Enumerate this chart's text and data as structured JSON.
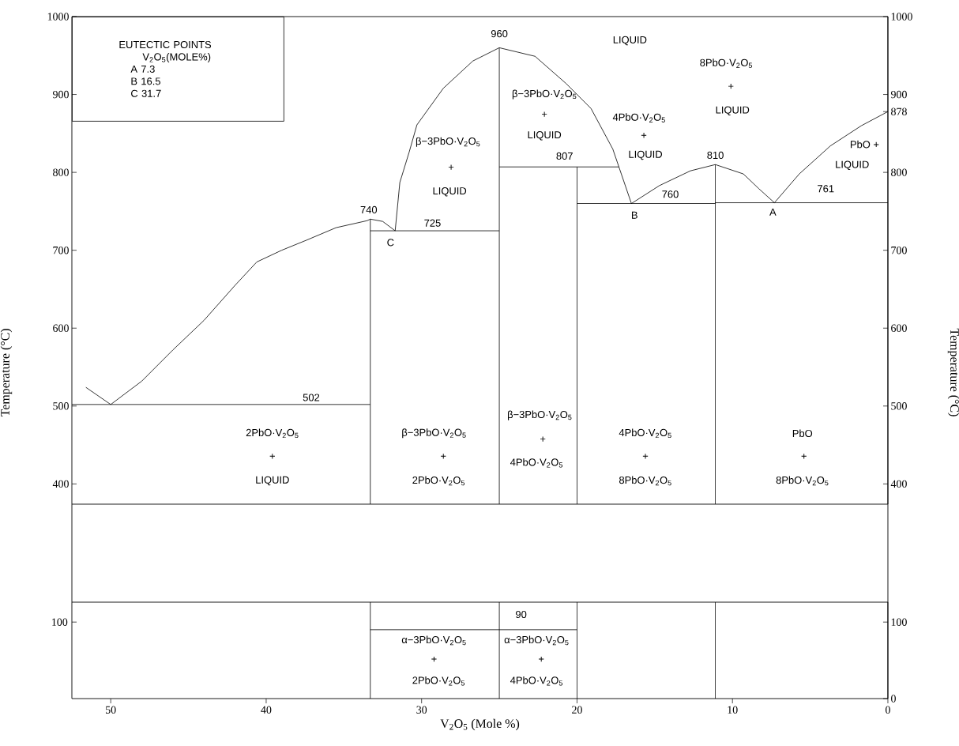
{
  "chart_data": [
    {
      "type": "line",
      "ylabel": "Temperature (°C)",
      "y2label": "Temperature (°C)",
      "xlim": [
        52.5,
        0
      ],
      "ylim": [
        374,
        1000
      ],
      "yticks": [
        400,
        500,
        600,
        700,
        800,
        900,
        1000
      ],
      "y2lim": [
        374,
        1000
      ],
      "y2ticks": [
        400,
        500,
        600,
        700,
        800,
        878,
        900,
        1000
      ],
      "tick_labels": "y",
      "series": [
        {
          "color": "#000000",
          "x": [
            51.6,
            50,
            48,
            46,
            44,
            42,
            40.6,
            39,
            37.4,
            35.5,
            33.5,
            33.3,
            32.5,
            31.7
          ],
          "values": [
            524,
            502,
            532,
            572,
            610,
            655,
            685,
            700,
            713,
            729,
            738,
            740,
            737,
            725
          ]
        },
        {
          "color": "#000000",
          "x": [
            31.7,
            31.4,
            30.8,
            30.3,
            28.6,
            26.7,
            25
          ],
          "values": [
            725,
            787,
            826,
            861,
            908,
            943,
            960
          ]
        },
        {
          "color": "#000000",
          "x": [
            25,
            22.7,
            20.7,
            19.1,
            17.7,
            16.5
          ],
          "values": [
            960,
            949,
            914,
            882,
            830,
            760
          ]
        },
        {
          "color": "#000000",
          "x": [
            16.5,
            14.7,
            12.7,
            11.1,
            9.3,
            8.3,
            7.3
          ],
          "values": [
            760,
            783,
            802,
            810,
            798,
            779,
            761
          ]
        },
        {
          "color": "#000000",
          "x": [
            7.3,
            5.7,
            3.7,
            1.7,
            0
          ],
          "values": [
            761,
            798,
            834,
            860,
            878
          ]
        },
        {
          "color": "#000000",
          "x": [
            52.5,
            33.3
          ],
          "values": [
            502,
            502
          ]
        },
        {
          "color": "#000000",
          "x": [
            33.3,
            33.3
          ],
          "values": [
            374,
            740
          ]
        },
        {
          "color": "#000000",
          "x": [
            33.3,
            25
          ],
          "values": [
            725,
            725
          ]
        },
        {
          "color": "#000000",
          "x": [
            25,
            25
          ],
          "values": [
            374,
            960
          ]
        },
        {
          "color": "#000000",
          "x": [
            25,
            17.3
          ],
          "values": [
            807,
            807
          ]
        },
        {
          "color": "#000000",
          "x": [
            20,
            20
          ],
          "values": [
            374,
            807
          ]
        },
        {
          "color": "#000000",
          "x": [
            20,
            11.1,
            11.1,
            0
          ],
          "values": [
            760,
            760,
            761,
            761
          ]
        },
        {
          "color": "#000000",
          "x": [
            11.1,
            11.1
          ],
          "values": [
            374,
            810
          ]
        }
      ],
      "annotations": [
        "EUTECTIC POINTS",
        "V$_{2}$O$_{5}$(MOLE%)",
        "A   7.3",
        "B   16.5",
        "C   31.7",
        "960",
        "740",
        "C",
        "725",
        "502",
        "807",
        "760",
        "810",
        "761",
        "B",
        "A",
        "LIQUID",
        "8PbO·V$_{2}$O$_{5}$",
        "+",
        "LIQUID",
        "β−3PbO·V$_{2}$O$_{5}$",
        "+",
        "LIQUID",
        "4PbO·V$_{2}$O$_{5}$",
        "+",
        "LIQUID",
        "β−3PbO·V$_{2}$O$_{5}$",
        "+",
        "LIQUID",
        "PbO +",
        "LIQUID",
        "2PbO·V$_{2}$O$_{5}$",
        "+",
        "LIQUID",
        "β−3PbO·V$_{2}$O$_{5}$",
        "+",
        "2PbO·V$_{2}$O$_{5}$",
        "β−3PbO·V$_{2}$O$_{5}$",
        "+",
        "4PbO·V$_{2}$O$_{5}$",
        "4PbO·V$_{2}$O$_{5}$",
        "+",
        "8PbO·V$_{2}$O$_{5}$",
        "PbO",
        "+",
        "8PbO·V$_{2}$O$_{5}$"
      ]
    },
    {
      "type": "line",
      "xlabel": "V$_{2}$O$_{5}$ (Mole %)",
      "xlim": [
        52.5,
        0
      ],
      "xticks": [
        50,
        40,
        30,
        20,
        10,
        0
      ],
      "y2lim": [
        0,
        126
      ],
      "y2ticks": [
        0,
        100
      ],
      "series": [
        {
          "axis": "y2",
          "color": "#000000",
          "x": [
            33.3,
            33.3
          ],
          "values": [
            0,
            126
          ]
        },
        {
          "axis": "y2",
          "color": "#000000",
          "x": [
            25,
            25
          ],
          "values": [
            0,
            126
          ]
        },
        {
          "axis": "y2",
          "color": "#000000",
          "x": [
            20,
            20
          ],
          "values": [
            0,
            126
          ]
        },
        {
          "axis": "y2",
          "color": "#000000",
          "x": [
            11.1,
            11.1
          ],
          "values": [
            0,
            126
          ]
        },
        {
          "axis": "y2",
          "color": "#000000",
          "x": [
            33.3,
            20
          ],
          "values": [
            90,
            90
          ]
        }
      ],
      "annotations": [
        "90",
        "α−3PbO·V$_{2}$O$_{5}$",
        "+",
        "2PbO·V$_{2}$O$_{5}$",
        "α−3PbO·V$_{2}$O$_{5}$",
        "+",
        "4PbO·V$_{2}$O$_{5}$",
        "100"
      ]
    }
  ]
}
